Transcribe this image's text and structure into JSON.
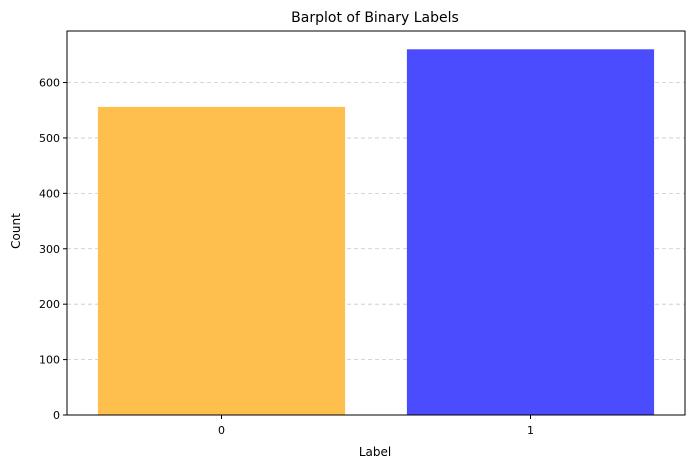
{
  "chart_data": {
    "type": "bar",
    "title": "Barplot of Binary Labels",
    "xlabel": "Label",
    "ylabel": "Count",
    "categories": [
      "0",
      "1"
    ],
    "values": [
      556,
      660
    ],
    "colors": [
      "#FFBF4D",
      "#4C4CFF"
    ],
    "ylim": [
      0,
      693
    ],
    "yticks": [
      0,
      100,
      200,
      300,
      400,
      500,
      600
    ],
    "grid": "y-dashed"
  }
}
